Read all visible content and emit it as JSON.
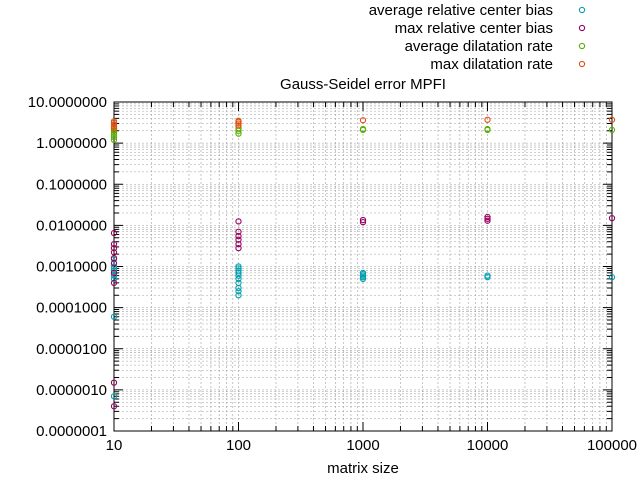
{
  "chart_data": {
    "type": "scatter",
    "title": "Gauss-Seidel error MPFI",
    "xlabel": "matrix size",
    "ylabel": "",
    "x_scale": "log",
    "y_scale": "log",
    "xlim": [
      10,
      100000
    ],
    "ylim": [
      1e-07,
      10
    ],
    "grid": true,
    "legend_position": "top-right",
    "x_ticks": [
      10,
      100,
      1000,
      10000,
      100000
    ],
    "x_tick_labels": [
      "10",
      "100",
      "1000",
      "10000",
      "100000"
    ],
    "y_ticks": [
      1e-07,
      1e-06,
      1e-05,
      0.0001,
      0.001,
      0.01,
      0.1,
      1,
      10
    ],
    "y_tick_labels": [
      "0.0000001",
      "0.0000010",
      "0.0000100",
      "0.0001000",
      "0.0010000",
      "0.0100000",
      "0.1000000",
      "1.0000000",
      "10.0000000"
    ],
    "series": [
      {
        "name": "average relative center bias",
        "color": "#009fb0",
        "points": [
          [
            10,
            7e-07
          ],
          [
            10,
            6e-05
          ],
          [
            10,
            0.0005
          ],
          [
            10,
            0.0006
          ],
          [
            10,
            0.0007
          ],
          [
            10,
            0.0008
          ],
          [
            10,
            0.0009
          ],
          [
            10,
            0.001
          ],
          [
            10,
            0.0015
          ],
          [
            100,
            0.0002
          ],
          [
            100,
            0.00025
          ],
          [
            100,
            0.0003
          ],
          [
            100,
            0.0004
          ],
          [
            100,
            0.0005
          ],
          [
            100,
            0.0006
          ],
          [
            100,
            0.0007
          ],
          [
            100,
            0.0008
          ],
          [
            100,
            0.0009
          ],
          [
            100,
            0.001
          ],
          [
            1000,
            0.0005
          ],
          [
            1000,
            0.00055
          ],
          [
            1000,
            0.0006
          ],
          [
            1000,
            0.00065
          ],
          [
            1000,
            0.0007
          ],
          [
            10000,
            0.00055
          ],
          [
            10000,
            0.0006
          ],
          [
            100000,
            0.00055
          ]
        ]
      },
      {
        "name": "max relative center bias",
        "color": "#9a0060",
        "points": [
          [
            10,
            4e-07
          ],
          [
            10,
            1.5e-06
          ],
          [
            10,
            0.0004
          ],
          [
            10,
            0.0007
          ],
          [
            10,
            0.0012
          ],
          [
            10,
            0.0016
          ],
          [
            10,
            0.0022
          ],
          [
            10,
            0.0028
          ],
          [
            10,
            0.0035
          ],
          [
            10,
            0.0065
          ],
          [
            100,
            0.0028
          ],
          [
            100,
            0.0035
          ],
          [
            100,
            0.0045
          ],
          [
            100,
            0.0055
          ],
          [
            100,
            0.007
          ],
          [
            100,
            0.0125
          ],
          [
            1000,
            0.012
          ],
          [
            1000,
            0.0135
          ],
          [
            10000,
            0.013
          ],
          [
            10000,
            0.0145
          ],
          [
            10000,
            0.016
          ],
          [
            100000,
            0.015
          ]
        ]
      },
      {
        "name": "average dilatation rate",
        "color": "#56b000",
        "points": [
          [
            10,
            1.2
          ],
          [
            10,
            1.4
          ],
          [
            10,
            1.6
          ],
          [
            10,
            1.8
          ],
          [
            10,
            2.0
          ],
          [
            10,
            2.3
          ],
          [
            100,
            1.7
          ],
          [
            100,
            2.0
          ],
          [
            100,
            2.3
          ],
          [
            1000,
            2.1
          ],
          [
            1000,
            2.2
          ],
          [
            10000,
            2.1
          ],
          [
            10000,
            2.2
          ],
          [
            100000,
            2.1
          ]
        ]
      },
      {
        "name": "max dilatation rate",
        "color": "#e05010",
        "points": [
          [
            10,
            2.2
          ],
          [
            10,
            2.5
          ],
          [
            10,
            2.8
          ],
          [
            10,
            3.1
          ],
          [
            10,
            3.4
          ],
          [
            100,
            2.7
          ],
          [
            100,
            3.0
          ],
          [
            100,
            3.3
          ],
          [
            100,
            3.5
          ],
          [
            1000,
            3.6
          ],
          [
            10000,
            3.7
          ],
          [
            100000,
            3.7
          ]
        ]
      }
    ]
  }
}
